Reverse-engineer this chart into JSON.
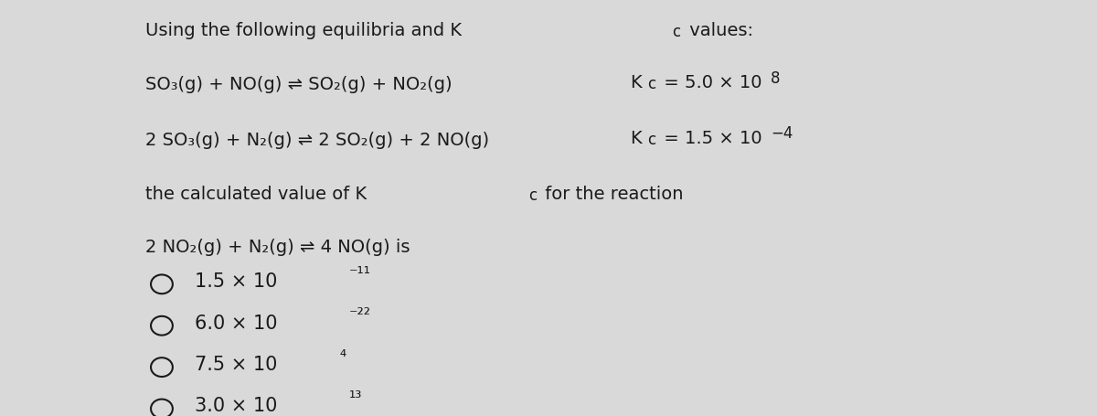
{
  "background_color": "#d9d9d9",
  "text_color": "#1a1a1a",
  "figsize": [
    12.0,
    4.55
  ],
  "dpi": 100,
  "base_font": 14,
  "options_main": [
    "1.5 × 10",
    "6.0 × 10",
    "7.5 × 10",
    "3.0 × 10"
  ],
  "options_exp": [
    "⁻¹¹",
    "⁻²²",
    "⁴",
    "¹³"
  ]
}
